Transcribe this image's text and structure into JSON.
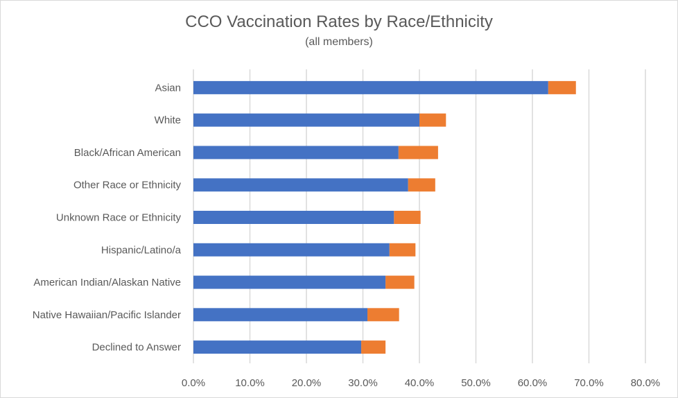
{
  "chart_data": {
    "type": "bar",
    "orientation": "horizontal",
    "stacked": true,
    "title": "CCO Vaccination Rates by Race/Ethnicity",
    "subtitle": "(all members)",
    "categories": [
      "Asian",
      "White",
      "Black/African American",
      "Other Race or Ethnicity",
      "Unknown Race or Ethnicity",
      "Hispanic/Latino/a",
      "American Indian/Alaskan Native",
      "Native Hawaiian/Pacific Islander",
      "Declined to Answer"
    ],
    "series": [
      {
        "color": "#4472c4",
        "values": [
          62.8,
          40.0,
          36.3,
          38.0,
          35.5,
          34.7,
          34.0,
          30.8,
          29.7
        ]
      },
      {
        "color": "#ed7d31",
        "values": [
          4.9,
          4.7,
          7.0,
          4.8,
          4.7,
          4.6,
          5.1,
          5.6,
          4.3
        ]
      }
    ],
    "xlim": [
      0,
      80
    ],
    "xticks": [
      0,
      10,
      20,
      30,
      40,
      50,
      60,
      70,
      80
    ],
    "xtick_labels": [
      "0.0%",
      "10.0%",
      "20.0%",
      "30.0%",
      "40.0%",
      "50.0%",
      "60.0%",
      "70.0%",
      "80.0%"
    ],
    "grid": "vertical",
    "legend": "none"
  }
}
